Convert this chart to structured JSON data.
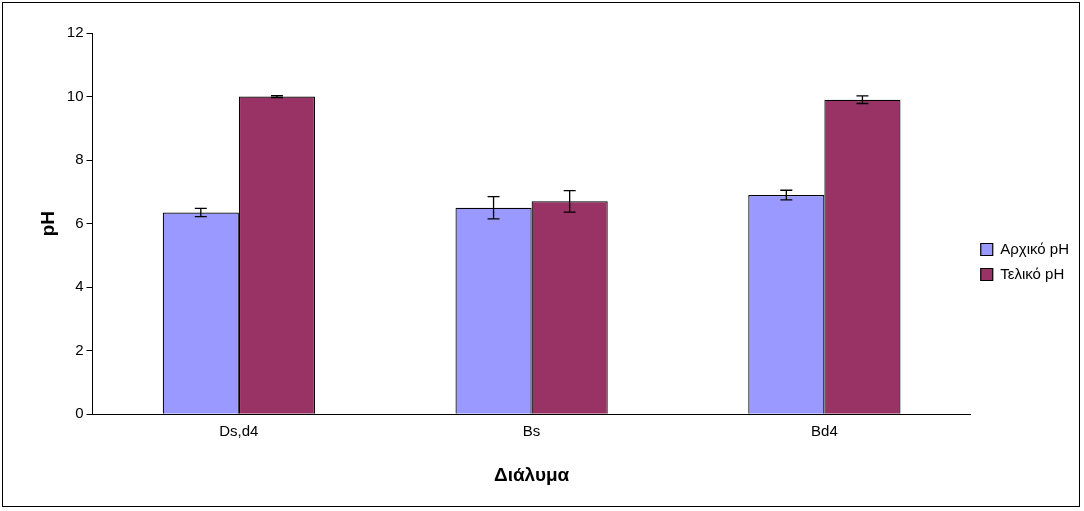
{
  "chart_data": {
    "type": "bar",
    "xlabel": "Διάλυμα",
    "ylabel": "pH",
    "categories": [
      "Ds,d4",
      "Bs",
      "Bd4"
    ],
    "series": [
      {
        "name": "Αρχικό pH",
        "color": "#9999ff",
        "values": [
          6.35,
          6.5,
          6.9
        ],
        "errors": [
          0.13,
          0.35,
          0.15
        ]
      },
      {
        "name": "Τελικό pH",
        "color": "#993366",
        "values": [
          10.0,
          6.7,
          9.9
        ],
        "errors": [
          0.03,
          0.34,
          0.12
        ]
      }
    ],
    "ylim": [
      0,
      12
    ],
    "yticks": [
      0,
      2,
      4,
      6,
      8,
      10,
      12
    ],
    "grid": false,
    "legend": "right"
  }
}
